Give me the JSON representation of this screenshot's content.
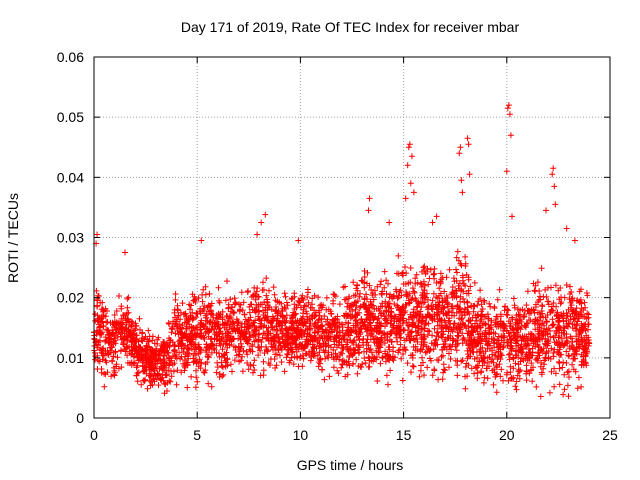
{
  "chart_data": {
    "type": "scatter",
    "title": "Day 171 of 2019, Rate Of TEC Index for receiver mbar",
    "xlabel": "GPS time / hours",
    "ylabel": "ROTI / TECUs",
    "xlim": [
      0,
      25
    ],
    "ylim": [
      0,
      0.06
    ],
    "x_ticks": [
      "0",
      "5",
      "10",
      "15",
      "20",
      "25"
    ],
    "y_ticks": [
      "0",
      "0.01",
      "0.02",
      "0.03",
      "0.04",
      "0.05",
      "0.06"
    ],
    "grid": true,
    "marker": "+",
    "color": "#ff0000",
    "envelope_hours": [
      0,
      0.5,
      1,
      1.5,
      2,
      2.5,
      3,
      3.5,
      4,
      4.5,
      5,
      5.5,
      6,
      6.5,
      7,
      7.5,
      8,
      8.5,
      9,
      9.5,
      10,
      10.5,
      11,
      11.5,
      12,
      12.5,
      13,
      13.5,
      14,
      14.5,
      15,
      15.5,
      16,
      16.5,
      17,
      17.5,
      18,
      18.5,
      19,
      19.5,
      20,
      20.5,
      21,
      21.5,
      22,
      22.5,
      23,
      23.5,
      24
    ],
    "envelope_low": [
      0.006,
      0.004,
      0.005,
      0.006,
      0.005,
      0.004,
      0.003,
      0.003,
      0.004,
      0.004,
      0.004,
      0.004,
      0.004,
      0.004,
      0.004,
      0.005,
      0.005,
      0.005,
      0.006,
      0.006,
      0.006,
      0.005,
      0.005,
      0.005,
      0.004,
      0.004,
      0.005,
      0.005,
      0.004,
      0.004,
      0.004,
      0.003,
      0.004,
      0.004,
      0.004,
      0.004,
      0.003,
      0.002,
      0.003,
      0.003,
      0.003,
      0.003,
      0.003,
      0.003,
      0.002,
      0.002,
      0.002,
      0.003,
      0.004
    ],
    "envelope_high": [
      0.025,
      0.023,
      0.02,
      0.024,
      0.018,
      0.016,
      0.015,
      0.017,
      0.022,
      0.023,
      0.025,
      0.025,
      0.023,
      0.024,
      0.023,
      0.024,
      0.027,
      0.025,
      0.023,
      0.022,
      0.024,
      0.023,
      0.023,
      0.023,
      0.024,
      0.025,
      0.027,
      0.026,
      0.025,
      0.026,
      0.03,
      0.028,
      0.03,
      0.031,
      0.028,
      0.029,
      0.03,
      0.025,
      0.022,
      0.023,
      0.024,
      0.022,
      0.024,
      0.026,
      0.027,
      0.027,
      0.026,
      0.024,
      0.023
    ],
    "notable_points": [
      {
        "x": 0.1,
        "y": 0.029
      },
      {
        "x": 0.15,
        "y": 0.0305
      },
      {
        "x": 1.5,
        "y": 0.0275
      },
      {
        "x": 5.2,
        "y": 0.0295
      },
      {
        "x": 7.9,
        "y": 0.0305
      },
      {
        "x": 8.1,
        "y": 0.0325
      },
      {
        "x": 8.3,
        "y": 0.0338
      },
      {
        "x": 9.9,
        "y": 0.0295
      },
      {
        "x": 13.3,
        "y": 0.0345
      },
      {
        "x": 13.35,
        "y": 0.0365
      },
      {
        "x": 14.3,
        "y": 0.0325
      },
      {
        "x": 15.1,
        "y": 0.0365
      },
      {
        "x": 15.2,
        "y": 0.042
      },
      {
        "x": 15.25,
        "y": 0.045
      },
      {
        "x": 15.3,
        "y": 0.0455
      },
      {
        "x": 15.35,
        "y": 0.039
      },
      {
        "x": 15.4,
        "y": 0.0435
      },
      {
        "x": 15.5,
        "y": 0.0375
      },
      {
        "x": 16.4,
        "y": 0.0325
      },
      {
        "x": 16.6,
        "y": 0.0335
      },
      {
        "x": 17.7,
        "y": 0.044
      },
      {
        "x": 17.75,
        "y": 0.045
      },
      {
        "x": 17.8,
        "y": 0.0395
      },
      {
        "x": 17.85,
        "y": 0.0375
      },
      {
        "x": 18.1,
        "y": 0.0465
      },
      {
        "x": 18.15,
        "y": 0.0455
      },
      {
        "x": 18.2,
        "y": 0.0405
      },
      {
        "x": 20.0,
        "y": 0.041
      },
      {
        "x": 20.05,
        "y": 0.0515
      },
      {
        "x": 20.1,
        "y": 0.052
      },
      {
        "x": 20.15,
        "y": 0.0505
      },
      {
        "x": 20.2,
        "y": 0.047
      },
      {
        "x": 20.25,
        "y": 0.0335
      },
      {
        "x": 21.9,
        "y": 0.0345
      },
      {
        "x": 22.2,
        "y": 0.0405
      },
      {
        "x": 22.25,
        "y": 0.0415
      },
      {
        "x": 22.3,
        "y": 0.0385
      },
      {
        "x": 22.35,
        "y": 0.0355
      },
      {
        "x": 22.9,
        "y": 0.0315
      },
      {
        "x": 23.3,
        "y": 0.0295
      }
    ]
  }
}
